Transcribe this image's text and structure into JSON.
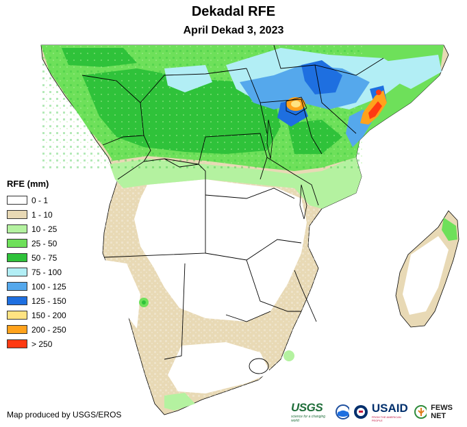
{
  "title": "Dekadal RFE",
  "subtitle": "April Dekad 3, 2023",
  "legend": {
    "title": "RFE (mm)",
    "items": [
      {
        "label": "0 - 1",
        "color": "#ffffff"
      },
      {
        "label": "1 - 10",
        "color": "#e8d9b5"
      },
      {
        "label": "10 - 25",
        "color": "#b4f2a0"
      },
      {
        "label": "25 - 50",
        "color": "#6ee05a"
      },
      {
        "label": "50 - 75",
        "color": "#2fc23a"
      },
      {
        "label": "75 - 100",
        "color": "#b2eef5"
      },
      {
        "label": "100 - 125",
        "color": "#55a8ec"
      },
      {
        "label": "125 - 150",
        "color": "#1e6fe0"
      },
      {
        "label": "150 - 200",
        "color": "#ffe382"
      },
      {
        "label": "200 - 250",
        "color": "#ffa21c"
      },
      {
        "label": "> 250",
        "color": "#ff3a12"
      }
    ]
  },
  "credit": "Map produced by USGS/EROS",
  "logos": {
    "usgs": "USGS",
    "usgs_tagline": "science for a changing world",
    "usaid": "USAID",
    "usaid_tagline": "FROM THE AMERICAN PEOPLE",
    "fews": "FEWS NET"
  }
}
